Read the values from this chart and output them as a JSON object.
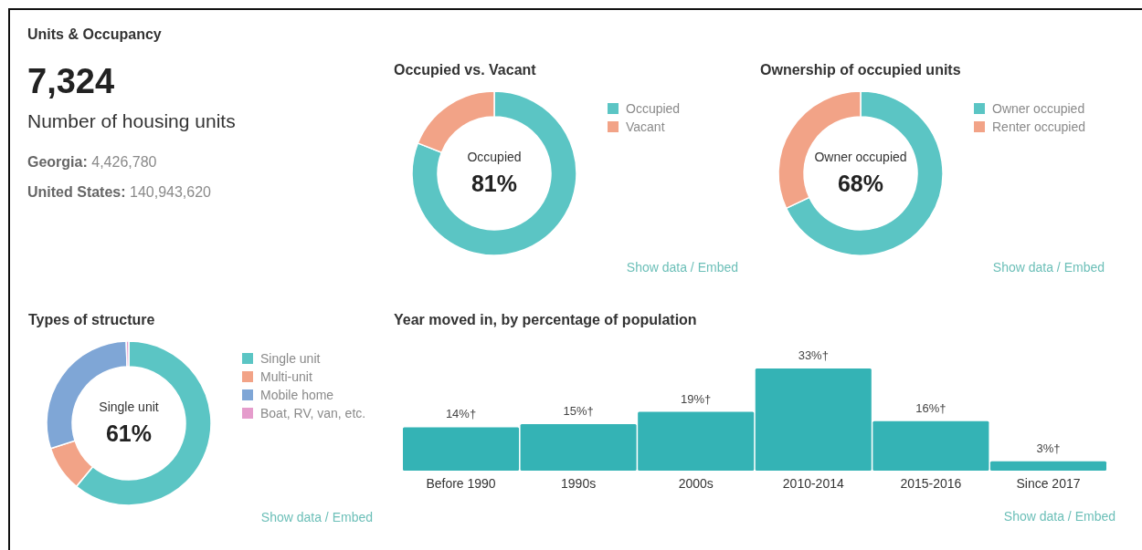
{
  "chart_data": [
    {
      "type": "other",
      "title": "Units & Occupancy",
      "annotations": [
        "7,324",
        "Number of housing units",
        "Georgia: 4,426,780",
        "United States: 140,943,620"
      ]
    },
    {
      "type": "donut",
      "title": "Occupied vs. Vacant",
      "categories": [
        "Occupied",
        "Vacant"
      ],
      "values": [
        81,
        19
      ],
      "colors": [
        "#5bc5c4",
        "#f2a387"
      ],
      "value_labels": [
        "81%",
        null
      ],
      "legend": "right",
      "annotations": [
        "Show data / Embed"
      ]
    },
    {
      "type": "donut",
      "title": "Ownership of occupied units",
      "categories": [
        "Owner occupied",
        "Renter occupied"
      ],
      "values": [
        68,
        32
      ],
      "colors": [
        "#5bc5c4",
        "#f2a387"
      ],
      "value_labels": [
        "68%",
        null
      ],
      "legend": "right",
      "annotations": [
        "Show data / Embed"
      ]
    },
    {
      "type": "donut",
      "title": "Types of structure",
      "categories": [
        "Single unit",
        "Multi-unit",
        "Mobile home",
        "Boat, RV, van, etc."
      ],
      "values": [
        61,
        9,
        29.5,
        0.5
      ],
      "colors": [
        "#5bc5c4",
        "#f2a387",
        "#7fa6d6",
        "#e59ccc"
      ],
      "value_labels": [
        "61%",
        null,
        null,
        null
      ],
      "legend": "right",
      "annotations": [
        "Show data / Embed"
      ]
    },
    {
      "type": "bar",
      "title": "Year moved in, by percentage of population",
      "categories": [
        "Before 1990",
        "1990s",
        "2000s",
        "2010-2014",
        "2015-2016",
        "Since 2017"
      ],
      "values": [
        14,
        15,
        19,
        33,
        16,
        3
      ],
      "color": "#34b3b5",
      "value_labels": [
        "14%†",
        "15%†",
        "19%†",
        "33%†",
        "16%†",
        "3%†"
      ],
      "annotations": [
        "Show data / Embed"
      ]
    }
  ]
}
